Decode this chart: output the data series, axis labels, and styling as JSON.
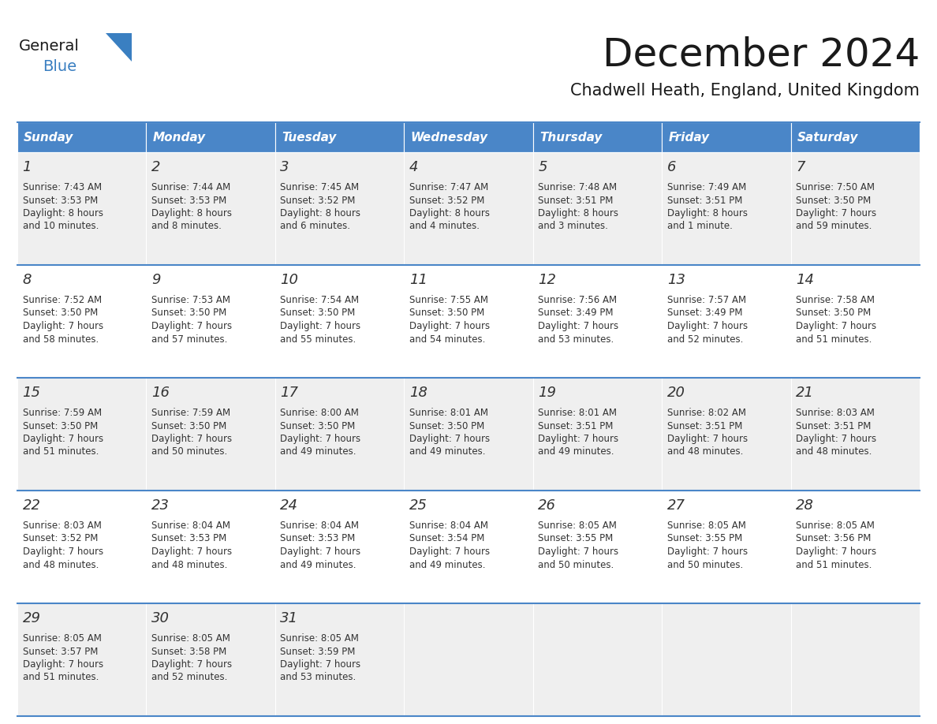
{
  "title": "December 2024",
  "subtitle": "Chadwell Heath, England, United Kingdom",
  "days_of_week": [
    "Sunday",
    "Monday",
    "Tuesday",
    "Wednesday",
    "Thursday",
    "Friday",
    "Saturday"
  ],
  "header_bg": "#4A86C8",
  "header_text": "#FFFFFF",
  "cell_bg_odd": "#EFEFEF",
  "cell_bg_even": "#FFFFFF",
  "separator_color": "#4A86C8",
  "title_color": "#1a1a1a",
  "subtitle_color": "#1a1a1a",
  "date_color": "#333333",
  "text_color": "#333333",
  "logo_general_color": "#1a1a1a",
  "logo_blue_color": "#3A7FC1",
  "calendar_data": [
    [
      {
        "day": 1,
        "sunrise": "7:43 AM",
        "sunset": "3:53 PM",
        "daylight_hours": 8,
        "daylight_minutes": "10 minutes"
      },
      {
        "day": 2,
        "sunrise": "7:44 AM",
        "sunset": "3:53 PM",
        "daylight_hours": 8,
        "daylight_minutes": "8 minutes"
      },
      {
        "day": 3,
        "sunrise": "7:45 AM",
        "sunset": "3:52 PM",
        "daylight_hours": 8,
        "daylight_minutes": "6 minutes"
      },
      {
        "day": 4,
        "sunrise": "7:47 AM",
        "sunset": "3:52 PM",
        "daylight_hours": 8,
        "daylight_minutes": "4 minutes"
      },
      {
        "day": 5,
        "sunrise": "7:48 AM",
        "sunset": "3:51 PM",
        "daylight_hours": 8,
        "daylight_minutes": "3 minutes"
      },
      {
        "day": 6,
        "sunrise": "7:49 AM",
        "sunset": "3:51 PM",
        "daylight_hours": 8,
        "daylight_minutes": "1 minute"
      },
      {
        "day": 7,
        "sunrise": "7:50 AM",
        "sunset": "3:50 PM",
        "daylight_hours": 7,
        "daylight_minutes": "59 minutes"
      }
    ],
    [
      {
        "day": 8,
        "sunrise": "7:52 AM",
        "sunset": "3:50 PM",
        "daylight_hours": 7,
        "daylight_minutes": "58 minutes"
      },
      {
        "day": 9,
        "sunrise": "7:53 AM",
        "sunset": "3:50 PM",
        "daylight_hours": 7,
        "daylight_minutes": "57 minutes"
      },
      {
        "day": 10,
        "sunrise": "7:54 AM",
        "sunset": "3:50 PM",
        "daylight_hours": 7,
        "daylight_minutes": "55 minutes"
      },
      {
        "day": 11,
        "sunrise": "7:55 AM",
        "sunset": "3:50 PM",
        "daylight_hours": 7,
        "daylight_minutes": "54 minutes"
      },
      {
        "day": 12,
        "sunrise": "7:56 AM",
        "sunset": "3:49 PM",
        "daylight_hours": 7,
        "daylight_minutes": "53 minutes"
      },
      {
        "day": 13,
        "sunrise": "7:57 AM",
        "sunset": "3:49 PM",
        "daylight_hours": 7,
        "daylight_minutes": "52 minutes"
      },
      {
        "day": 14,
        "sunrise": "7:58 AM",
        "sunset": "3:50 PM",
        "daylight_hours": 7,
        "daylight_minutes": "51 minutes"
      }
    ],
    [
      {
        "day": 15,
        "sunrise": "7:59 AM",
        "sunset": "3:50 PM",
        "daylight_hours": 7,
        "daylight_minutes": "51 minutes"
      },
      {
        "day": 16,
        "sunrise": "7:59 AM",
        "sunset": "3:50 PM",
        "daylight_hours": 7,
        "daylight_minutes": "50 minutes"
      },
      {
        "day": 17,
        "sunrise": "8:00 AM",
        "sunset": "3:50 PM",
        "daylight_hours": 7,
        "daylight_minutes": "49 minutes"
      },
      {
        "day": 18,
        "sunrise": "8:01 AM",
        "sunset": "3:50 PM",
        "daylight_hours": 7,
        "daylight_minutes": "49 minutes"
      },
      {
        "day": 19,
        "sunrise": "8:01 AM",
        "sunset": "3:51 PM",
        "daylight_hours": 7,
        "daylight_minutes": "49 minutes"
      },
      {
        "day": 20,
        "sunrise": "8:02 AM",
        "sunset": "3:51 PM",
        "daylight_hours": 7,
        "daylight_minutes": "48 minutes"
      },
      {
        "day": 21,
        "sunrise": "8:03 AM",
        "sunset": "3:51 PM",
        "daylight_hours": 7,
        "daylight_minutes": "48 minutes"
      }
    ],
    [
      {
        "day": 22,
        "sunrise": "8:03 AM",
        "sunset": "3:52 PM",
        "daylight_hours": 7,
        "daylight_minutes": "48 minutes"
      },
      {
        "day": 23,
        "sunrise": "8:04 AM",
        "sunset": "3:53 PM",
        "daylight_hours": 7,
        "daylight_minutes": "48 minutes"
      },
      {
        "day": 24,
        "sunrise": "8:04 AM",
        "sunset": "3:53 PM",
        "daylight_hours": 7,
        "daylight_minutes": "49 minutes"
      },
      {
        "day": 25,
        "sunrise": "8:04 AM",
        "sunset": "3:54 PM",
        "daylight_hours": 7,
        "daylight_minutes": "49 minutes"
      },
      {
        "day": 26,
        "sunrise": "8:05 AM",
        "sunset": "3:55 PM",
        "daylight_hours": 7,
        "daylight_minutes": "50 minutes"
      },
      {
        "day": 27,
        "sunrise": "8:05 AM",
        "sunset": "3:55 PM",
        "daylight_hours": 7,
        "daylight_minutes": "50 minutes"
      },
      {
        "day": 28,
        "sunrise": "8:05 AM",
        "sunset": "3:56 PM",
        "daylight_hours": 7,
        "daylight_minutes": "51 minutes"
      }
    ],
    [
      {
        "day": 29,
        "sunrise": "8:05 AM",
        "sunset": "3:57 PM",
        "daylight_hours": 7,
        "daylight_minutes": "51 minutes"
      },
      {
        "day": 30,
        "sunrise": "8:05 AM",
        "sunset": "3:58 PM",
        "daylight_hours": 7,
        "daylight_minutes": "52 minutes"
      },
      {
        "day": 31,
        "sunrise": "8:05 AM",
        "sunset": "3:59 PM",
        "daylight_hours": 7,
        "daylight_minutes": "53 minutes"
      },
      null,
      null,
      null,
      null
    ]
  ]
}
